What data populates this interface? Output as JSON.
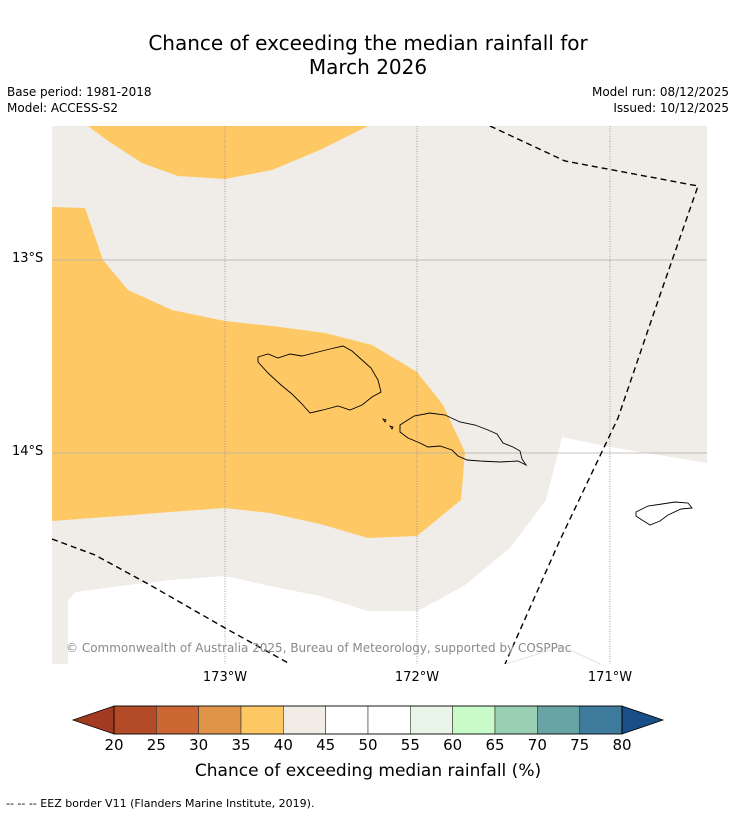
{
  "title_line1": "Chance of exceeding the median rainfall for",
  "title_line2": "March 2026",
  "base_period": "Base period: 1981-2018",
  "model": "Model: ACCESS-S2",
  "model_run": "Model run: 08/12/2025",
  "issued": "Issued: 10/12/2025",
  "lat_labels": [
    "13°S",
    "14°S"
  ],
  "lon_labels": [
    "173°W",
    "172°W",
    "171°W"
  ],
  "copyright": "© Commonwealth of Australia 2025, Bureau of Meteorology, supported by COSPPac",
  "colorbar": {
    "ticks": [
      "20",
      "25",
      "30",
      "35",
      "40",
      "45",
      "50",
      "55",
      "60",
      "65",
      "70",
      "75",
      "80"
    ],
    "colors": [
      "#a23a22",
      "#b34a28",
      "#cc6632",
      "#e09448",
      "#fdc864",
      "#f2ece7",
      "#ffffff",
      "#ffffff",
      "#e8f5e8",
      "#c9fbc8",
      "#9acfb4",
      "#6aa3a6",
      "#3e7a9c",
      "#1a4e86"
    ],
    "label": "Chance of exceeding median rainfall (%)"
  },
  "footnote": "--  --  -- EEZ border V11 (Flanders Marine Institute, 2019)."
}
